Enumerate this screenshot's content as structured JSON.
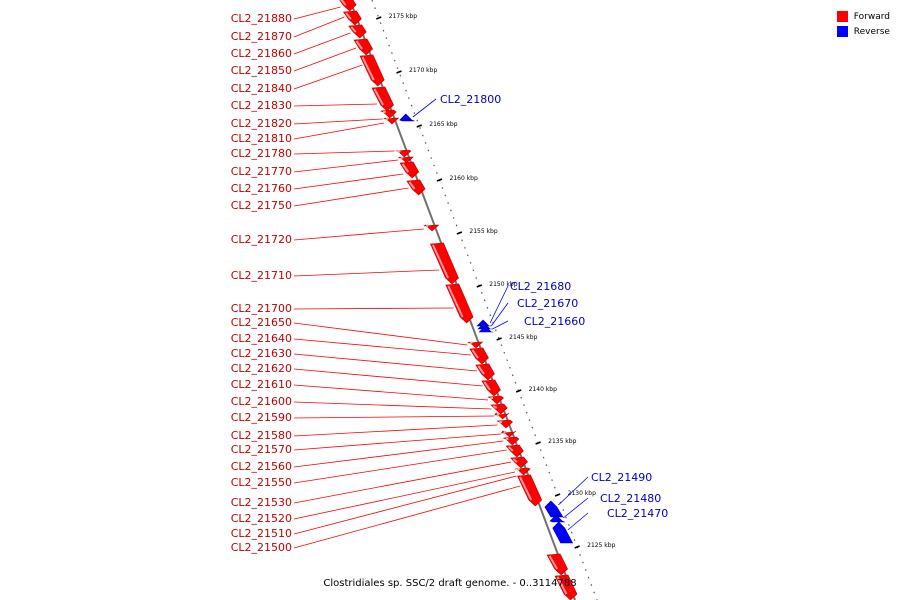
{
  "legend": {
    "forward_label": "Forward",
    "reverse_label": "Reverse",
    "forward_color": "#ff0000",
    "reverse_color": "#0000ff"
  },
  "caption": "Clostridiales sp. SSC/2 draft genome. - 0..3114788",
  "ruler": {
    "ticks": [
      "2175 kbp",
      "2170 kbp",
      "2165 kbp",
      "2160 kbp",
      "2155 kbp",
      "2150 kbp",
      "2145 kbp",
      "2140 kbp",
      "2135 kbp",
      "2130 kbp",
      "2125 kbp"
    ]
  },
  "genes": {
    "forward": [
      "CL2_21880",
      "CL2_21870",
      "CL2_21860",
      "CL2_21850",
      "CL2_21840",
      "CL2_21830",
      "CL2_21820",
      "CL2_21810",
      "CL2_21780",
      "CL2_21770",
      "CL2_21760",
      "CL2_21750",
      "CL2_21720",
      "CL2_21710",
      "CL2_21700",
      "CL2_21650",
      "CL2_21640",
      "CL2_21630",
      "CL2_21620",
      "CL2_21610",
      "CL2_21600",
      "CL2_21590",
      "CL2_21580",
      "CL2_21570",
      "CL2_21560",
      "CL2_21550",
      "CL2_21530",
      "CL2_21520",
      "CL2_21510",
      "CL2_21500"
    ],
    "reverse": [
      "CL2_21800",
      "CL2_21680",
      "CL2_21670",
      "CL2_21660",
      "CL2_21490",
      "CL2_21480",
      "CL2_21470"
    ]
  }
}
